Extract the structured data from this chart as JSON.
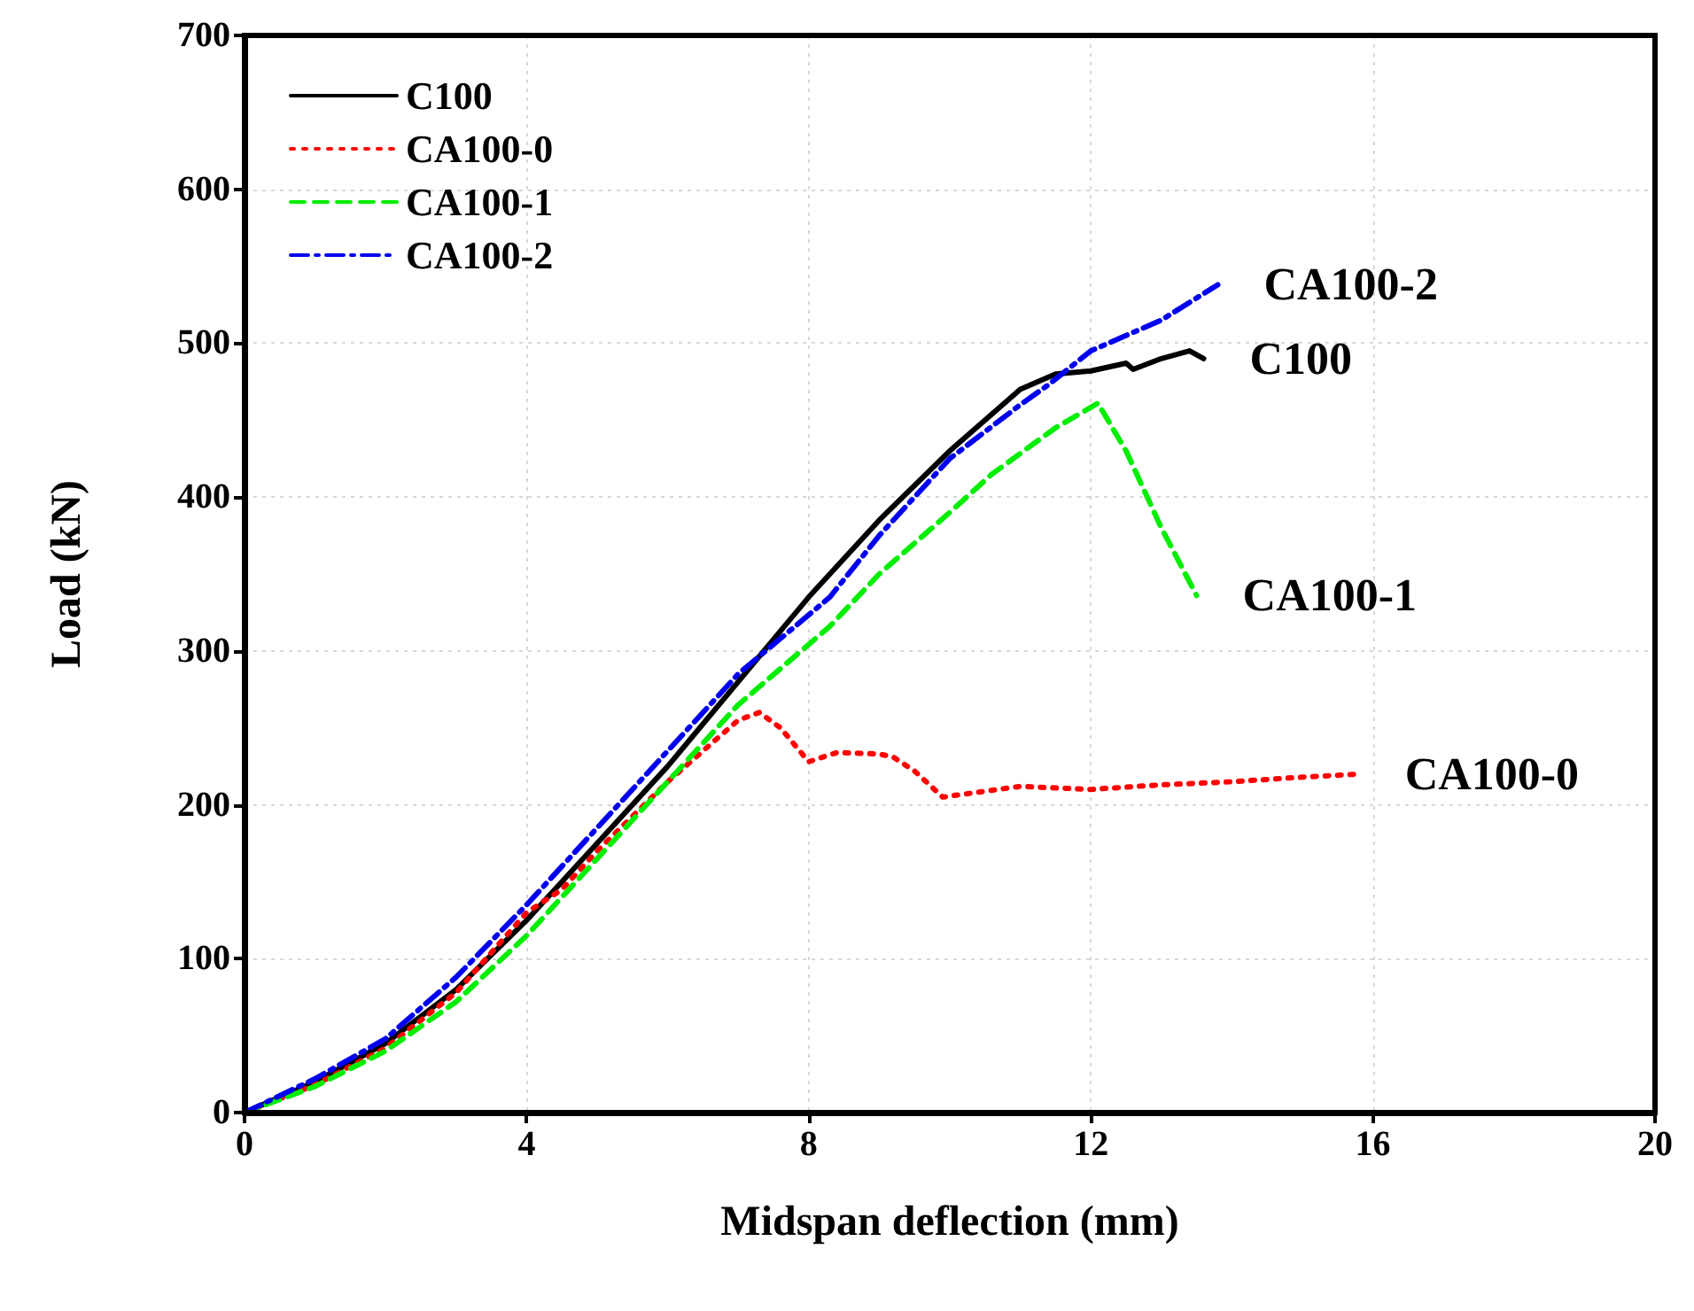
{
  "chart_data": {
    "type": "line",
    "xlabel": "Midspan deflection (mm)",
    "ylabel": "Load (kN)",
    "xlim": [
      0,
      20
    ],
    "xticks": [
      0,
      4,
      8,
      12,
      16,
      20
    ],
    "ylim": [
      0,
      700
    ],
    "yticks": [
      0,
      100,
      200,
      300,
      400,
      500,
      600,
      700
    ],
    "grid": true,
    "legend": "top left",
    "marker": "none",
    "series": [
      {
        "name": "C100",
        "color": "#000000",
        "line_style": "solid",
        "x": [
          0,
          1,
          2,
          3,
          4,
          5,
          6,
          7,
          8,
          9,
          10,
          11,
          11.5,
          12,
          12.5,
          12.6,
          13,
          13.4,
          13.6
        ],
        "values": [
          0,
          20,
          45,
          80,
          125,
          175,
          225,
          280,
          335,
          385,
          430,
          470,
          480,
          482,
          487,
          483,
          490,
          495,
          490
        ]
      },
      {
        "name": "CA100-0",
        "color": "#ff0000",
        "line_style": "dotted",
        "x": [
          0,
          1,
          2,
          3,
          4,
          4.5,
          5,
          6,
          7,
          7.3,
          7.6,
          8,
          8.4,
          9,
          9.2,
          9.5,
          9.9,
          11,
          12,
          13,
          14,
          15,
          15.8
        ],
        "values": [
          0,
          18,
          42,
          78,
          130,
          145,
          170,
          215,
          255,
          260,
          250,
          228,
          234,
          233,
          231,
          222,
          205,
          212,
          210,
          213,
          215,
          218,
          220
        ]
      },
      {
        "name": "CA100-1",
        "color": "#00ee00",
        "line_style": "dashed",
        "x": [
          0,
          1,
          2,
          3,
          4,
          5,
          6,
          7,
          8.3,
          9,
          10,
          10.6,
          11.5,
          12.1,
          12.5,
          13,
          13.5
        ],
        "values": [
          0,
          17,
          40,
          72,
          115,
          165,
          215,
          265,
          316,
          350,
          390,
          415,
          445,
          461,
          430,
          380,
          336
        ]
      },
      {
        "name": "CA100-2",
        "color": "#0000ee",
        "line_style": "dashdot",
        "x": [
          0,
          1,
          2,
          3,
          4,
          5,
          6,
          7,
          8.3,
          9,
          10,
          11,
          11.4,
          12,
          13,
          13.8
        ],
        "values": [
          0,
          22,
          48,
          88,
          135,
          185,
          235,
          285,
          335,
          375,
          425,
          460,
          473,
          495,
          515,
          538
        ]
      }
    ],
    "annotations": [
      "C100",
      "CA100-0",
      "CA100-1",
      "CA100-2"
    ]
  }
}
